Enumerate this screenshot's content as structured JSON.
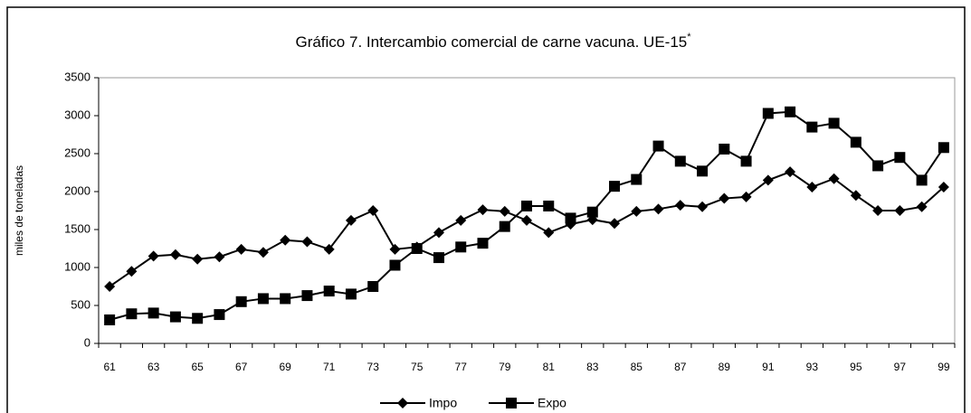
{
  "chart_data": {
    "type": "line",
    "title": "Gráfico 7. Intercambio comercial de carne vacuna. UE-15",
    "title_note": "*",
    "y_label": "miles de toneladas",
    "categories": [
      "61",
      null,
      "63",
      null,
      "65",
      null,
      "67",
      null,
      "69",
      null,
      "71",
      null,
      "73",
      null,
      "75",
      null,
      "77",
      null,
      "79",
      null,
      "81",
      null,
      "83",
      null,
      "85",
      null,
      "87",
      null,
      "89",
      null,
      "91",
      null,
      "93",
      null,
      "95",
      null,
      "97",
      null,
      "99"
    ],
    "series": [
      {
        "name": "Impo",
        "color": "#000000",
        "marker": "diamond",
        "values": [
          750,
          950,
          1150,
          1170,
          1110,
          1140,
          1240,
          1200,
          1360,
          1340,
          1240,
          1620,
          1750,
          1240,
          1270,
          1460,
          1620,
          1760,
          1740,
          1620,
          1460,
          1570,
          1630,
          1580,
          1740,
          1770,
          1820,
          1800,
          1910,
          1930,
          2150,
          2260,
          2060,
          2170,
          1950,
          1750,
          1750,
          1800,
          2060
        ]
      },
      {
        "name": "Expo",
        "color": "#000000",
        "marker": "square",
        "values": [
          310,
          390,
          400,
          350,
          330,
          380,
          550,
          590,
          590,
          630,
          690,
          650,
          750,
          1030,
          1250,
          1130,
          1270,
          1320,
          1540,
          1810,
          1810,
          1650,
          1730,
          2070,
          2160,
          2600,
          2400,
          2270,
          2560,
          2400,
          3030,
          3050,
          2850,
          2900,
          2650,
          2340,
          2450,
          2150,
          2580
        ]
      }
    ],
    "ylim": [
      0,
      3500
    ],
    "yticks": [
      0,
      500,
      1000,
      1500,
      2000,
      2500,
      3000,
      3500
    ],
    "legend": "bottom"
  }
}
